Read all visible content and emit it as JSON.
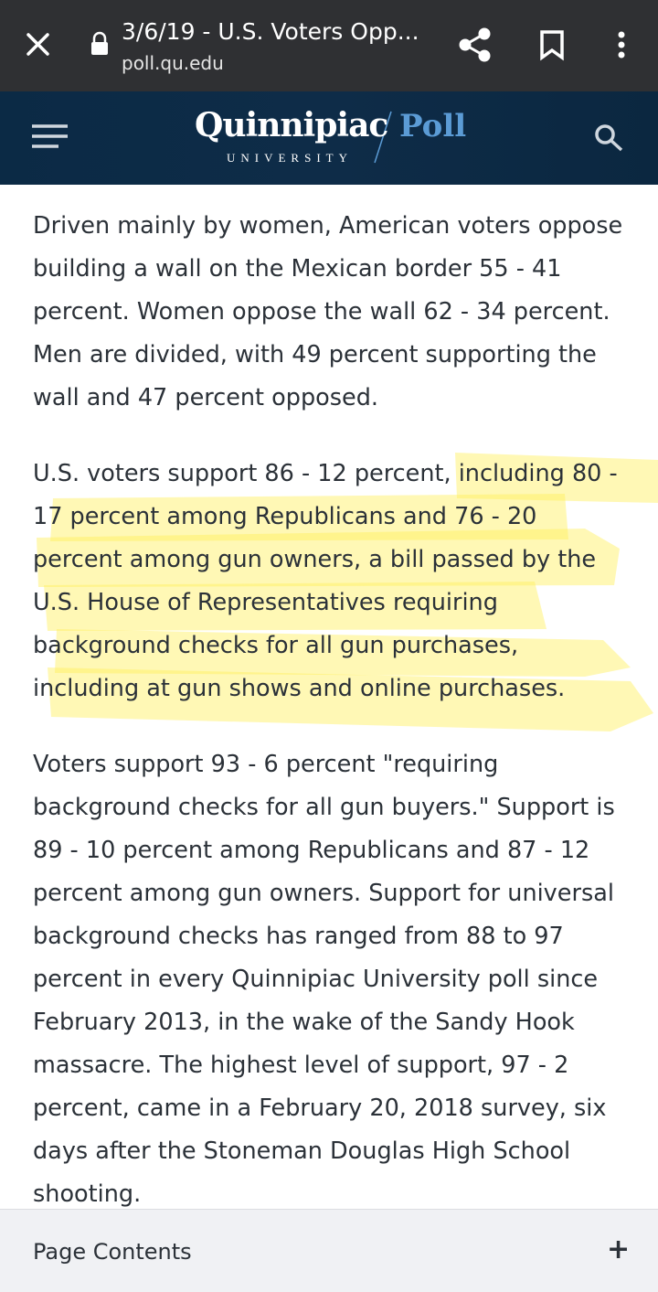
{
  "browser": {
    "tab_title": "3/6/19 - U.S. Voters Opp...",
    "url": "poll.qu.edu"
  },
  "header": {
    "logo_main": "Quinnipiac",
    "logo_sub": "UNIVERSITY",
    "logo_poll": "Poll"
  },
  "article": {
    "paragraphs": [
      "Driven mainly by women, American voters oppose building a wall on the Mexican border 55 - 41 percent. Women oppose the wall 62 - 34 percent. Men are divided, with 49 percent supporting the wall and 47 percent opposed.",
      "U.S. voters support 86 - 12 percent, including 80 - 17 percent among Republicans and 76 - 20 percent among gun owners, a bill passed by the U.S. House of Representatives requiring background checks for all gun purchases, including at gun shows and online purchases.",
      "Voters support 93 - 6 percent \"requiring background checks for all gun buyers.\" Support is 89 - 10 percent among Republicans and 87 - 12 percent among gun owners. Support for universal background checks has ranged from 88 to 97 percent in every Quinnipiac University poll since February 2013, in the wake of the Sandy Hook massacre. The highest level of support, 97 - 2 percent, came in a February 20, 2018 survey, six days after the Stoneman Douglas High School shooting."
    ]
  },
  "footer": {
    "label": "Page Contents",
    "toggle": "+"
  }
}
